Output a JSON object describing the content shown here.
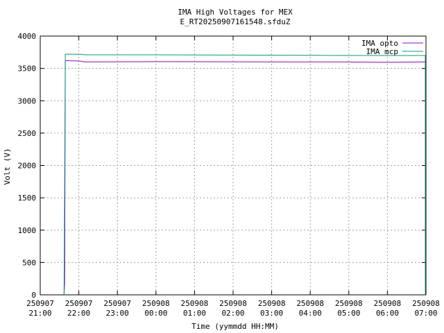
{
  "chart_data": {
    "type": "line",
    "title": "IMA High Voltages for MEX",
    "subtitle": "E_RT20250907161548.sfduZ",
    "x_label": "Time (yymmdd HH:MM)",
    "y_label": "Volt (V)",
    "xlim": [
      "250907 21:00",
      "250908 07:00"
    ],
    "xticks": [
      "250907 21:00",
      "250907 22:00",
      "250907 23:00",
      "250908 00:00",
      "250908 01:00",
      "250908 02:00",
      "250908 03:00",
      "250908 04:00",
      "250908 05:00",
      "250908 06:00",
      "250908 07:00"
    ],
    "ylim": [
      0,
      4000
    ],
    "yticks": [
      0,
      500,
      1000,
      1500,
      2000,
      2500,
      3000,
      3500,
      4000
    ],
    "grid": true,
    "legend": "top-right",
    "series": [
      {
        "name": "IMA opto",
        "color": "#9400d3",
        "x": [
          "250907 21:37",
          "250907 21:38",
          "250907 21:39",
          "250907 22:00",
          "250907 22:10",
          "250908 00:00",
          "250908 03:00",
          "250908 05:00",
          "250908 06:00",
          "250908 06:58",
          "250908 06:59",
          "250908 06:59"
        ],
        "values": [
          0,
          180,
          3620,
          3615,
          3600,
          3605,
          3600,
          3600,
          3595,
          3600,
          3600,
          150
        ]
      },
      {
        "name": "IMA mcp",
        "color": "#009e73",
        "x": [
          "250907 21:37",
          "250907 21:39",
          "250907 22:00",
          "250907 22:10",
          "250908 00:00",
          "250908 03:00",
          "250908 05:00",
          "250908 06:00",
          "250908 06:58",
          "250908 06:59",
          "250908 06:59"
        ],
        "values": [
          0,
          3720,
          3720,
          3710,
          3710,
          3705,
          3700,
          3700,
          3700,
          3700,
          0
        ]
      }
    ]
  }
}
